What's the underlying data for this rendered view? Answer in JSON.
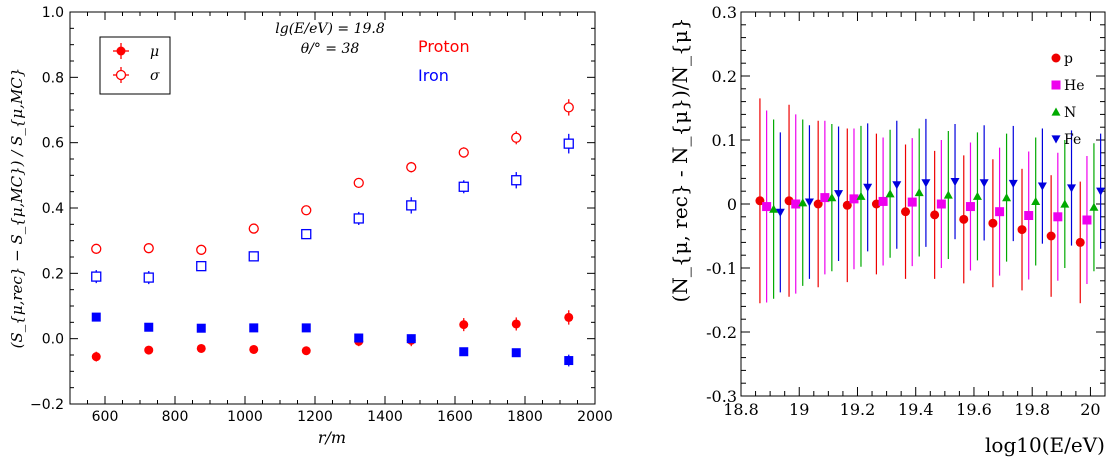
{
  "chart_data": [
    {
      "type": "scatter",
      "xlabel": "r/m",
      "ylabel": "(S_{μ,rec} − S_{μ,MC}) / S_{μ,MC}",
      "xlim": [
        500,
        2000
      ],
      "ylim": [
        -0.2,
        1.0
      ],
      "xticks": [
        "600",
        "800",
        "1000",
        "1200",
        "1400",
        "1600",
        "1800",
        "2000"
      ],
      "yticks": [
        "−0.2",
        "0.0",
        "0.2",
        "0.4",
        "0.6",
        "0.8",
        "1.0"
      ],
      "legend": {
        "position": "top-left",
        "entries": [
          "μ",
          "σ"
        ]
      },
      "annotations": [
        "lg(E/eV) = 19.8",
        "θ/° = 38"
      ],
      "labels": {
        "proton": "Proton",
        "iron": "Iron"
      },
      "colors": {
        "proton": "#ff0000",
        "iron": "#0000ff"
      },
      "x": [
        575,
        725,
        875,
        1025,
        1175,
        1325,
        1475,
        1625,
        1775,
        1925
      ],
      "series": [
        {
          "name": "Proton μ",
          "marker": "filled-circle",
          "color": "#ff0000",
          "values": [
            -0.055,
            -0.035,
            -0.03,
            -0.033,
            -0.037,
            -0.008,
            -0.005,
            0.043,
            0.045,
            0.065
          ],
          "errors": [
            0.015,
            0.01,
            0.008,
            0.01,
            0.013,
            0.015,
            0.018,
            0.02,
            0.02,
            0.022
          ]
        },
        {
          "name": "Proton σ",
          "marker": "open-circle",
          "color": "#ff0000",
          "values": [
            0.275,
            0.277,
            0.272,
            0.337,
            0.393,
            0.477,
            0.525,
            0.57,
            0.615,
            0.708
          ],
          "errors": [
            0.008,
            0.008,
            0.008,
            0.008,
            0.01,
            0.012,
            0.016,
            0.016,
            0.02,
            0.025
          ]
        },
        {
          "name": "Iron μ",
          "marker": "filled-square",
          "color": "#0000ff",
          "values": [
            0.066,
            0.035,
            0.032,
            0.033,
            0.033,
            0.002,
            0.0,
            -0.04,
            -0.043,
            -0.067
          ],
          "errors": [
            0.008,
            0.008,
            0.008,
            0.008,
            0.008,
            0.01,
            0.012,
            0.012,
            0.012,
            0.018
          ]
        },
        {
          "name": "Iron σ",
          "marker": "open-square",
          "color": "#0000ff",
          "values": [
            0.19,
            0.187,
            0.222,
            0.252,
            0.32,
            0.368,
            0.408,
            0.465,
            0.485,
            0.597
          ],
          "errors": [
            0.02,
            0.02,
            0.012,
            0.012,
            0.012,
            0.02,
            0.025,
            0.02,
            0.025,
            0.03
          ]
        }
      ]
    },
    {
      "type": "scatter",
      "xlabel": "log10(E/eV)",
      "ylabel": "(N_{μ, rec} - N_{μ})/N_{μ}",
      "xlim": [
        18.8,
        20.05
      ],
      "ylim": [
        -0.3,
        0.3
      ],
      "xticks": [
        "18.8",
        "19",
        "19.2",
        "19.4",
        "19.6",
        "19.8",
        "20"
      ],
      "yticks": [
        "-0.3",
        "-0.2",
        "-0.1",
        "0",
        "0.1",
        "0.2",
        "0.3"
      ],
      "legend": {
        "position": "top-right",
        "entries": [
          "p",
          "He",
          "N",
          "Fe"
        ]
      },
      "colors": {
        "p": "#ee0000",
        "He": "#ee00ee",
        "N": "#00aa00",
        "Fe": "#0000dd"
      },
      "x": [
        18.9,
        19.0,
        19.1,
        19.2,
        19.3,
        19.4,
        19.5,
        19.6,
        19.7,
        19.8,
        19.9,
        20.0
      ],
      "series": [
        {
          "name": "p",
          "marker": "circle",
          "color": "#ee0000",
          "values": [
            0.005,
            0.005,
            0.0,
            -0.002,
            0.0,
            -0.012,
            -0.017,
            -0.024,
            -0.03,
            -0.04,
            -0.05,
            -0.06
          ],
          "errors": [
            0.16,
            0.15,
            0.13,
            0.12,
            0.11,
            0.105,
            0.1,
            0.1,
            0.1,
            0.095,
            0.095,
            0.095
          ]
        },
        {
          "name": "He",
          "marker": "square",
          "color": "#ee00ee",
          "values": [
            -0.004,
            0.0,
            0.01,
            0.008,
            0.004,
            0.003,
            0.0,
            -0.004,
            -0.012,
            -0.018,
            -0.02,
            -0.025
          ],
          "errors": [
            0.15,
            0.14,
            0.12,
            0.11,
            0.1,
            0.1,
            0.1,
            0.1,
            0.1,
            0.1,
            0.1,
            0.1
          ]
        },
        {
          "name": "N",
          "marker": "triangle-up",
          "color": "#00aa00",
          "values": [
            -0.008,
            0.002,
            0.01,
            0.012,
            0.016,
            0.018,
            0.014,
            0.012,
            0.01,
            0.004,
            0.0,
            -0.005
          ],
          "errors": [
            0.14,
            0.13,
            0.115,
            0.11,
            0.1,
            0.1,
            0.1,
            0.1,
            0.1,
            0.1,
            0.1,
            0.1
          ]
        },
        {
          "name": "Fe",
          "marker": "triangle-down",
          "color": "#0000dd",
          "values": [
            -0.013,
            0.003,
            0.016,
            0.026,
            0.03,
            0.033,
            0.035,
            0.033,
            0.032,
            0.028,
            0.025,
            0.02
          ],
          "errors": [
            0.125,
            0.12,
            0.105,
            0.1,
            0.1,
            0.1,
            0.09,
            0.09,
            0.09,
            0.09,
            0.09,
            0.09
          ]
        }
      ]
    }
  ]
}
